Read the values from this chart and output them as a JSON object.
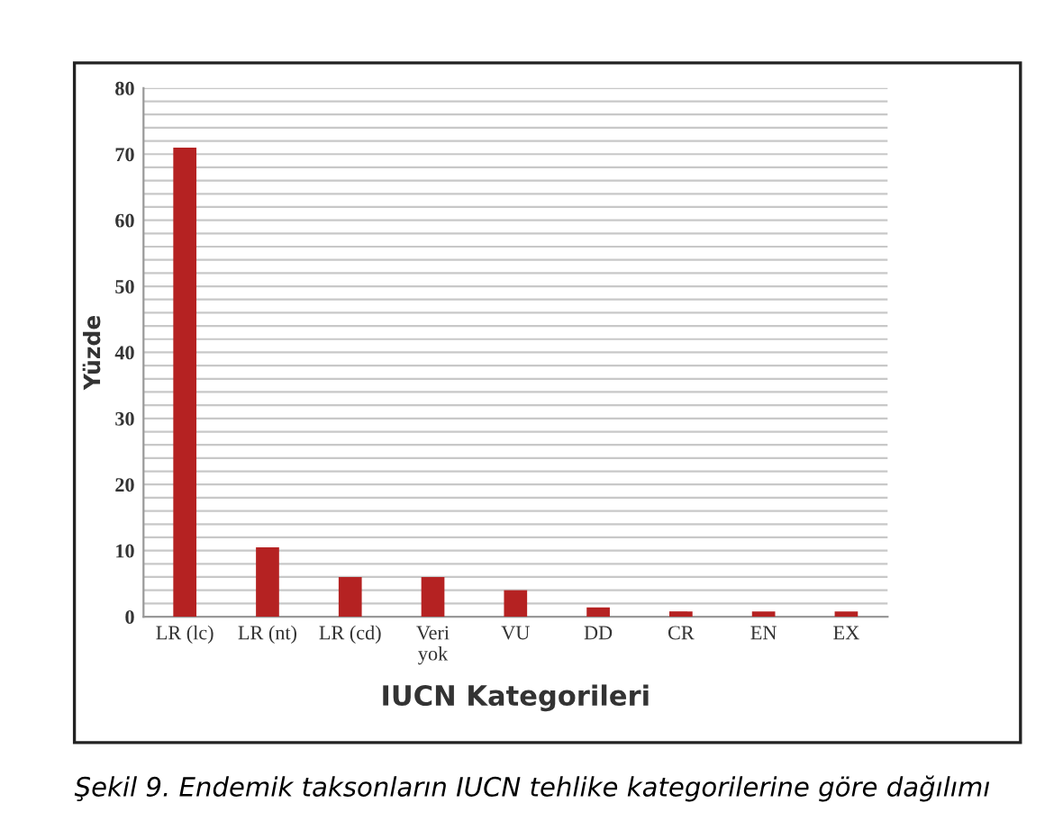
{
  "chart_data": {
    "type": "bar",
    "xlabel": "IUCN Kategorileri",
    "ylabel": "Yüzde",
    "categories": [
      "LR (lc)",
      "LR (nt)",
      "LR (cd)",
      "Veri\nyok",
      "VU",
      "DD",
      "CR",
      "EN",
      "EX"
    ],
    "values": [
      71,
      10.5,
      6,
      6,
      4,
      1.4,
      0.8,
      0.8,
      0.8
    ],
    "color": "#b52222",
    "ylim": [
      0,
      80
    ],
    "yticks": [
      0,
      {
        "value": 2,
        "label": null
      },
      {
        "value": 4,
        "label": null
      },
      {
        "value": 6,
        "label": null
      },
      {
        "value": 8,
        "label": null
      },
      10,
      {
        "value": 12,
        "label": null
      },
      {
        "value": 14,
        "label": null
      },
      {
        "value": 16,
        "label": null
      },
      {
        "value": 18,
        "label": null
      },
      20,
      {
        "value": 22,
        "label": null
      },
      {
        "value": 24,
        "label": null
      },
      {
        "value": 26,
        "label": null
      },
      {
        "value": 28,
        "label": null
      },
      30,
      {
        "value": 32,
        "label": null
      },
      {
        "value": 34,
        "label": null
      },
      {
        "value": 36,
        "label": null
      },
      {
        "value": 38,
        "label": null
      },
      40,
      {
        "value": 42,
        "label": null
      },
      {
        "value": 44,
        "label": null
      },
      {
        "value": 46,
        "label": null
      },
      {
        "value": 48,
        "label": null
      },
      50,
      {
        "value": 52,
        "label": null
      },
      {
        "value": 54,
        "label": null
      },
      {
        "value": 56,
        "label": null
      },
      {
        "value": 58,
        "label": null
      },
      60,
      {
        "value": 62,
        "label": null
      },
      {
        "value": 64,
        "label": null
      },
      {
        "value": 66,
        "label": null
      },
      {
        "value": 68,
        "label": null
      },
      70,
      {
        "value": 72,
        "label": null
      },
      {
        "value": 74,
        "label": null
      },
      {
        "value": 76,
        "label": null
      },
      {
        "value": 78,
        "label": null
      },
      80
    ],
    "grid": "y",
    "annotations": [
      "Şekil 9. Endemik taksonların IUCN tehlike kategorilerine göre dağılımı"
    ]
  }
}
